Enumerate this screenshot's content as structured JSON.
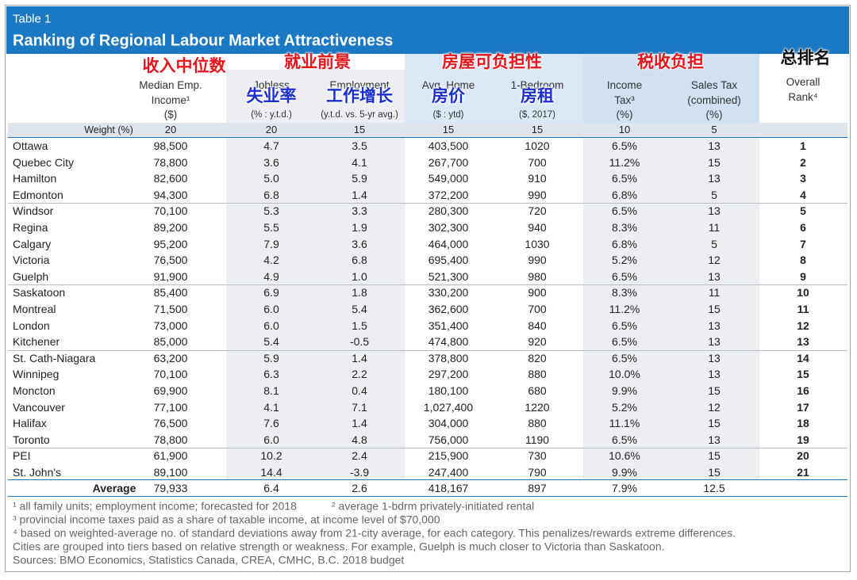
{
  "header": {
    "label": "Table 1",
    "title": "Ranking of Regional Labour Market Attractiveness"
  },
  "annotations": {
    "groups": [
      "收入中位数",
      "就业前景",
      "房屋可负担性",
      "税收负担",
      "总排名"
    ],
    "columns": [
      "失业率",
      "工作增长",
      "房价",
      "房租"
    ]
  },
  "table": {
    "columns": [
      [
        "Median Emp.",
        "Income¹",
        "($)"
      ],
      [
        "Jobless",
        "(% : y.t.d.)"
      ],
      [
        "Employment",
        "(y.t.d. vs. 5-yr avg.)"
      ],
      [
        "Avg. Home",
        "($ : ytd)"
      ],
      [
        "1-Bedroom",
        "($, 2017)"
      ],
      [
        "Income",
        "Tax³",
        "(%)"
      ],
      [
        "Sales Tax",
        "(combined)",
        "(%)"
      ],
      [
        "Overall",
        "Rank⁴"
      ]
    ],
    "weights": {
      "label": "Weight (%)",
      "values": [
        "20",
        "20",
        "15",
        "15",
        "15",
        "10",
        "5"
      ]
    },
    "rows": [
      [
        "Ottawa",
        "98,500",
        "4.7",
        "3.5",
        "403,500",
        "1020",
        "6.5%",
        "13",
        "1"
      ],
      [
        "Quebec City",
        "78,800",
        "3.6",
        "4.1",
        "267,700",
        "700",
        "11.2%",
        "15",
        "2"
      ],
      [
        "Hamilton",
        "82,600",
        "5.0",
        "5.9",
        "549,000",
        "910",
        "6.5%",
        "13",
        "3"
      ],
      [
        "Edmonton",
        "94,300",
        "6.8",
        "1.4",
        "372,200",
        "990",
        "6.8%",
        "5",
        "4"
      ],
      [
        "Windsor",
        "70,100",
        "5.3",
        "3.3",
        "280,300",
        "720",
        "6.5%",
        "13",
        "5"
      ],
      [
        "Regina",
        "89,200",
        "5.5",
        "1.9",
        "302,300",
        "940",
        "8.3%",
        "11",
        "6"
      ],
      [
        "Calgary",
        "95,200",
        "7.9",
        "3.6",
        "464,000",
        "1030",
        "6.8%",
        "5",
        "7"
      ],
      [
        "Victoria",
        "76,500",
        "4.2",
        "6.8",
        "695,400",
        "990",
        "5.2%",
        "12",
        "8"
      ],
      [
        "Guelph",
        "91,900",
        "4.9",
        "1.0",
        "521,300",
        "980",
        "6.5%",
        "13",
        "9"
      ],
      [
        "Saskatoon",
        "85,400",
        "6.9",
        "1.8",
        "330,200",
        "900",
        "8.3%",
        "11",
        "10"
      ],
      [
        "Montreal",
        "71,500",
        "6.0",
        "5.4",
        "362,600",
        "700",
        "11.2%",
        "15",
        "11"
      ],
      [
        "London",
        "73,000",
        "6.0",
        "1.5",
        "351,400",
        "840",
        "6.5%",
        "13",
        "12"
      ],
      [
        "Kitchener",
        "85,000",
        "5.4",
        "-0.5",
        "474,800",
        "920",
        "6.5%",
        "13",
        "13"
      ],
      [
        "St. Cath-Niagara",
        "63,200",
        "5.9",
        "1.4",
        "378,800",
        "820",
        "6.5%",
        "13",
        "14"
      ],
      [
        "Winnipeg",
        "70,100",
        "6.3",
        "2.2",
        "297,200",
        "880",
        "10.0%",
        "13",
        "15"
      ],
      [
        "Moncton",
        "69,900",
        "8.1",
        "0.4",
        "180,100",
        "680",
        "9.9%",
        "15",
        "16"
      ],
      [
        "Vancouver",
        "77,100",
        "4.1",
        "7.1",
        "1,027,400",
        "1220",
        "5.2%",
        "12",
        "17"
      ],
      [
        "Halifax",
        "76,500",
        "7.6",
        "1.4",
        "304,000",
        "880",
        "11.1%",
        "15",
        "18"
      ],
      [
        "Toronto",
        "78,800",
        "6.0",
        "4.8",
        "756,000",
        "1190",
        "6.5%",
        "13",
        "19"
      ],
      [
        "PEI",
        "61,900",
        "10.2",
        "2.4",
        "215,900",
        "730",
        "10.6%",
        "15",
        "20"
      ],
      [
        "St. John's",
        "89,100",
        "14.4",
        "-3.9",
        "247,400",
        "790",
        "9.9%",
        "15",
        "21"
      ]
    ],
    "average": [
      "Average",
      "79,933",
      "6.4",
      "2.6",
      "418,167",
      "897",
      "7.9%",
      "12.5"
    ]
  },
  "footnotes": [
    [
      "¹ all family units; employment income; forecasted for 2018",
      "² average 1-bdrm privately-initiated rental"
    ],
    [
      "³ provincial income taxes paid as a share of taxable income, at income level of $70,000"
    ],
    [
      "⁴ based on weighted-average no. of standard deviations away from 21-city average, for each category. This penalizes/rewards extreme differences."
    ],
    [
      "Cities are grouped into tiers based on relative strength or weakness. For example, Guelph is much closer to Victoria than Saskatoon."
    ],
    [
      "Sources: BMO Economics, Statistics Canada, CREA, CMHC, B.C. 2018 budget"
    ]
  ]
}
